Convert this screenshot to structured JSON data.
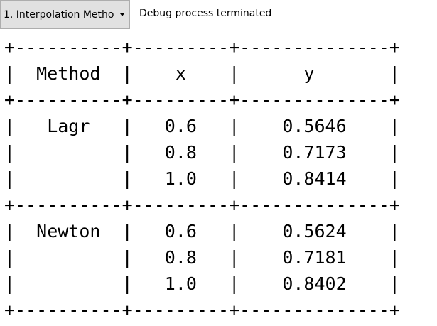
{
  "toolbar": {
    "method_select_value": "1. Interpolation Metho",
    "status": "Debug process terminated"
  },
  "output": {
    "text": "+----------+---------+--------------+\n|  Method  |    x    |      y       |\n+----------+---------+--------------+\n|   Lagr   |   0.6   |    0.5646    |\n|          |   0.8   |    0.7173    |\n|          |   1.0   |    0.8414    |\n+----------+---------+--------------+\n|  Newton  |   0.6   |    0.5624    |\n|          |   0.8   |    0.7181    |\n|          |   1.0   |    0.8402    |\n+----------+---------+--------------+"
  }
}
